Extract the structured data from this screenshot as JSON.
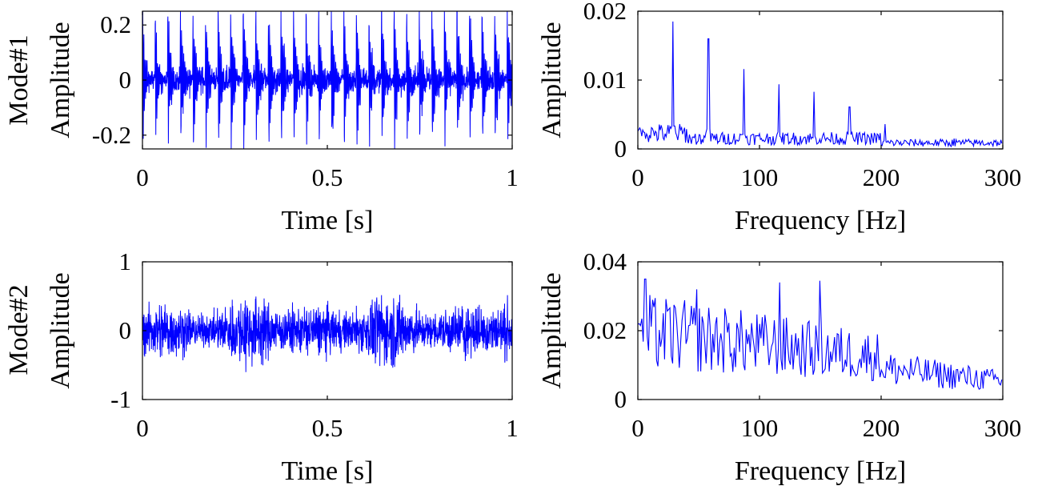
{
  "figure": {
    "modes": [
      {
        "label": "Mode#1",
        "color": "#ff0000"
      },
      {
        "label": "Mode#2",
        "color": "#ff0000"
      }
    ],
    "line_color": "#0000ff"
  },
  "chart_data": [
    {
      "type": "line",
      "mode": "Mode#1",
      "xlabel": "Time [s]",
      "ylabel": "Amplitude",
      "xlim": [
        0,
        1
      ],
      "ylim": [
        -0.25,
        0.25
      ],
      "xticks": [
        0,
        0.5,
        1
      ],
      "xtick_labels": [
        "0",
        "0.5",
        "1"
      ],
      "yticks": [
        -0.2,
        0,
        0.2
      ],
      "ytick_labels": [
        "-0.2",
        "0",
        "0.2"
      ],
      "signal": {
        "base_amplitude": 0.06,
        "impulse_period": 0.034,
        "impulse_amplitude": 0.22,
        "decay": 140,
        "ring_freq": 340
      },
      "series": [
        {
          "values": []
        }
      ]
    },
    {
      "type": "line",
      "mode": "Mode#1",
      "xlabel": "Frequency [Hz]",
      "ylabel": "Amplitude",
      "xlim": [
        0,
        300
      ],
      "ylim": [
        0,
        0.02
      ],
      "xticks": [
        0,
        100,
        200,
        300
      ],
      "xtick_labels": [
        "0",
        "100",
        "200",
        "300"
      ],
      "yticks": [
        0,
        0.01,
        0.02
      ],
      "ytick_labels": [
        "0",
        "0.01",
        "0.02"
      ],
      "peaks": [
        {
          "x": 29,
          "y": 0.0185
        },
        {
          "x": 58,
          "y": 0.016
        },
        {
          "x": 87,
          "y": 0.0116
        },
        {
          "x": 116,
          "y": 0.0094
        },
        {
          "x": 145,
          "y": 0.0083
        },
        {
          "x": 174,
          "y": 0.0061
        },
        {
          "x": 203,
          "y": 0.0036
        },
        {
          "x": 260,
          "y": 0.0015
        }
      ],
      "noise_floor": 0.0012,
      "series": [
        {
          "values": []
        }
      ]
    },
    {
      "type": "line",
      "mode": "Mode#2",
      "xlabel": "Time [s]",
      "ylabel": "Amplitude",
      "xlim": [
        0,
        1
      ],
      "ylim": [
        -1,
        1
      ],
      "xticks": [
        0,
        0.5,
        1
      ],
      "xtick_labels": [
        "0",
        "0.5",
        "1"
      ],
      "yticks": [
        -1,
        0,
        1
      ],
      "ytick_labels": [
        "-1",
        "0",
        "1"
      ],
      "signal": {
        "base_amplitude": 0.55,
        "peak_amplitude": 0.9
      },
      "series": [
        {
          "values": []
        }
      ]
    },
    {
      "type": "line",
      "mode": "Mode#2",
      "xlabel": "Frequency [Hz]",
      "ylabel": "Amplitude",
      "xlim": [
        0,
        300
      ],
      "ylim": [
        0,
        0.04
      ],
      "xticks": [
        0,
        100,
        200,
        300
      ],
      "xtick_labels": [
        "0",
        "100",
        "200",
        "300"
      ],
      "yticks": [
        0,
        0.02,
        0.04
      ],
      "ytick_labels": [
        "0",
        "0.02",
        "0.04"
      ],
      "peaks": [
        {
          "x": 6,
          "y": 0.035
        },
        {
          "x": 48,
          "y": 0.032
        },
        {
          "x": 117,
          "y": 0.034
        },
        {
          "x": 150,
          "y": 0.0345
        }
      ],
      "series": [
        {
          "values": []
        }
      ]
    }
  ]
}
